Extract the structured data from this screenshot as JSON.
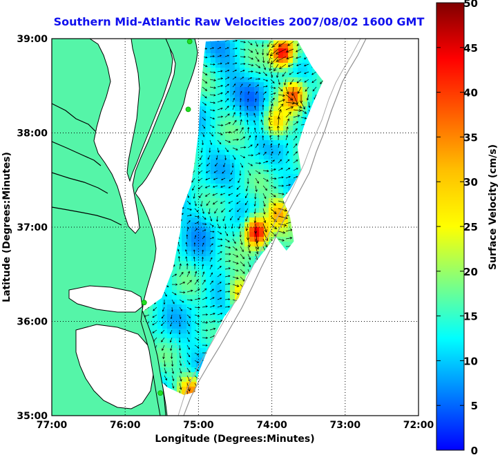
{
  "title": "Southern Mid-Atlantic Raw Velocities 2007/08/02 1600 GMT",
  "x_axis": {
    "label": "Longitude (Degrees:Minutes)",
    "ticks": [
      "77:00",
      "76:00",
      "75:00",
      "74:00",
      "73:00",
      "72:00"
    ]
  },
  "y_axis": {
    "label": "Latitude (Degrees:Minutes)",
    "ticks": [
      "39:00",
      "38:00",
      "37:00",
      "36:00",
      "35:00"
    ]
  },
  "colorbar": {
    "label": "Surface Velocity (cm/s)",
    "ticks": [
      "50",
      "45",
      "40",
      "35",
      "30",
      "25",
      "20",
      "15",
      "10",
      "5",
      "0"
    ],
    "range": [
      0,
      50
    ],
    "colormap": "jet"
  },
  "colors": {
    "land": "#55f5a8",
    "title": "#1010ee",
    "grid": "#000000",
    "bathymetry": "#909090",
    "station": "#22dd22"
  },
  "map": {
    "lon_range": [
      -77,
      -72
    ],
    "lat_range": [
      35,
      39
    ],
    "grid": "dotted",
    "stations": [
      [
        -75.12,
        38.97
      ],
      [
        -75.14,
        38.25
      ],
      [
        -75.74,
        36.2
      ],
      [
        -75.52,
        35.24
      ]
    ],
    "hotspots": [
      {
        "lon": -74.21,
        "lat": 36.95,
        "speed": 48
      },
      {
        "lon": -73.85,
        "lat": 38.85,
        "speed": 46
      },
      {
        "lon": -73.7,
        "lat": 38.4,
        "speed": 38
      },
      {
        "lon": -73.9,
        "lat": 37.15,
        "speed": 32
      },
      {
        "lon": -74.45,
        "lat": 36.3,
        "speed": 30
      },
      {
        "lon": -75.1,
        "lat": 35.27,
        "speed": 34
      },
      {
        "lon": -73.95,
        "lat": 38.1,
        "speed": 28
      }
    ],
    "lowspots": [
      {
        "lon": -74.2,
        "lat": 38.35,
        "speed": 8
      },
      {
        "lon": -74.95,
        "lat": 37.05,
        "speed": 9
      },
      {
        "lon": -74.6,
        "lat": 38.75,
        "speed": 10
      },
      {
        "lon": -74.75,
        "lat": 35.9,
        "speed": 11
      }
    ]
  }
}
